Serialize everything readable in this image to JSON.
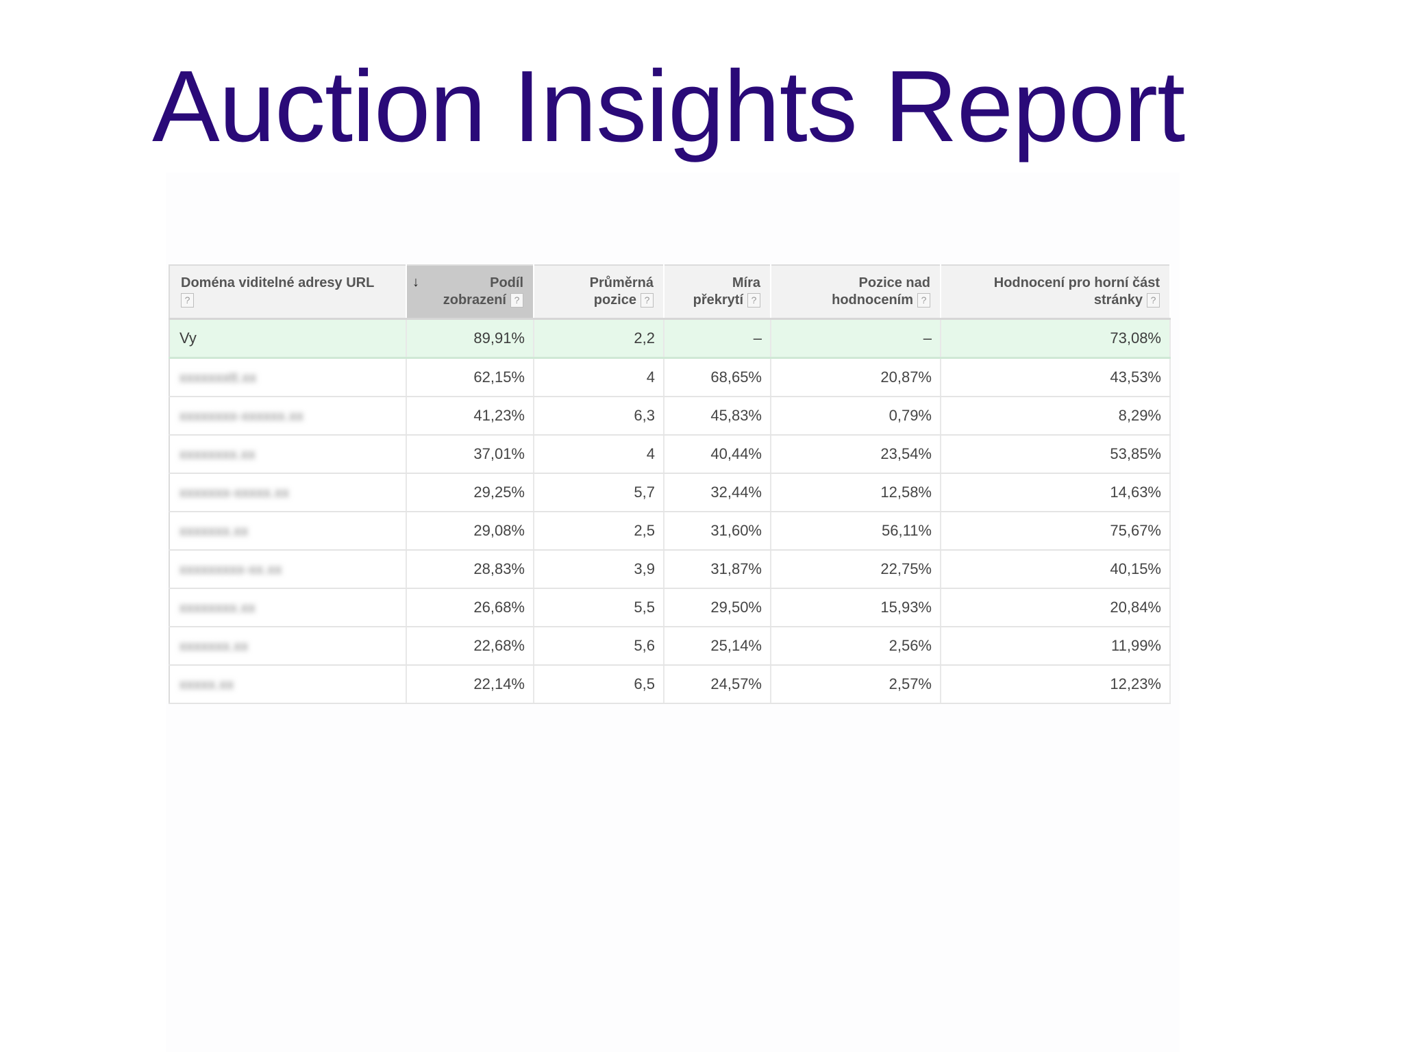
{
  "title": "Auction Insights Report",
  "table": {
    "headers": [
      {
        "line1": "Doména viditelné adresy URL",
        "line2": ""
      },
      {
        "line1": "Podíl",
        "line2": "zobrazení"
      },
      {
        "line1": "Průměrná",
        "line2": "pozice"
      },
      {
        "line1": "Míra",
        "line2": "překrytí"
      },
      {
        "line1": "Pozice nad",
        "line2": "hodnocením"
      },
      {
        "line1": "Hodnocení pro horní část",
        "line2": "stránky"
      }
    ],
    "help_glyph": "?",
    "sort_glyph": "↓",
    "rows": [
      {
        "domain": "Vy",
        "share": "89,91%",
        "position": "2,2",
        "overlap": "–",
        "above": "–",
        "top_page": "73,08%"
      },
      {
        "domain": "xxxxxxxtt.xx",
        "share": "62,15%",
        "position": "4",
        "overlap": "68,65%",
        "above": "20,87%",
        "top_page": "43,53%"
      },
      {
        "domain": "xxxxxxxx-xxxxxx.xx",
        "share": "41,23%",
        "position": "6,3",
        "overlap": "45,83%",
        "above": "0,79%",
        "top_page": "8,29%"
      },
      {
        "domain": "xxxxxxxx.xx",
        "share": "37,01%",
        "position": "4",
        "overlap": "40,44%",
        "above": "23,54%",
        "top_page": "53,85%"
      },
      {
        "domain": "xxxxxxx-xxxxx.xx",
        "share": "29,25%",
        "position": "5,7",
        "overlap": "32,44%",
        "above": "12,58%",
        "top_page": "14,63%"
      },
      {
        "domain": "xxxxxxx.xx",
        "share": "29,08%",
        "position": "2,5",
        "overlap": "31,60%",
        "above": "56,11%",
        "top_page": "75,67%"
      },
      {
        "domain": "xxxxxxxxx-xx.xx",
        "share": "28,83%",
        "position": "3,9",
        "overlap": "31,87%",
        "above": "22,75%",
        "top_page": "40,15%"
      },
      {
        "domain": "xxxxxxxx.xx",
        "share": "26,68%",
        "position": "5,5",
        "overlap": "29,50%",
        "above": "15,93%",
        "top_page": "20,84%"
      },
      {
        "domain": "xxxxxxx.xx",
        "share": "22,68%",
        "position": "5,6",
        "overlap": "25,14%",
        "above": "2,56%",
        "top_page": "11,99%"
      },
      {
        "domain": "xxxxx.xx",
        "share": "22,14%",
        "position": "6,5",
        "overlap": "24,57%",
        "above": "2,57%",
        "top_page": "12,23%"
      }
    ]
  }
}
